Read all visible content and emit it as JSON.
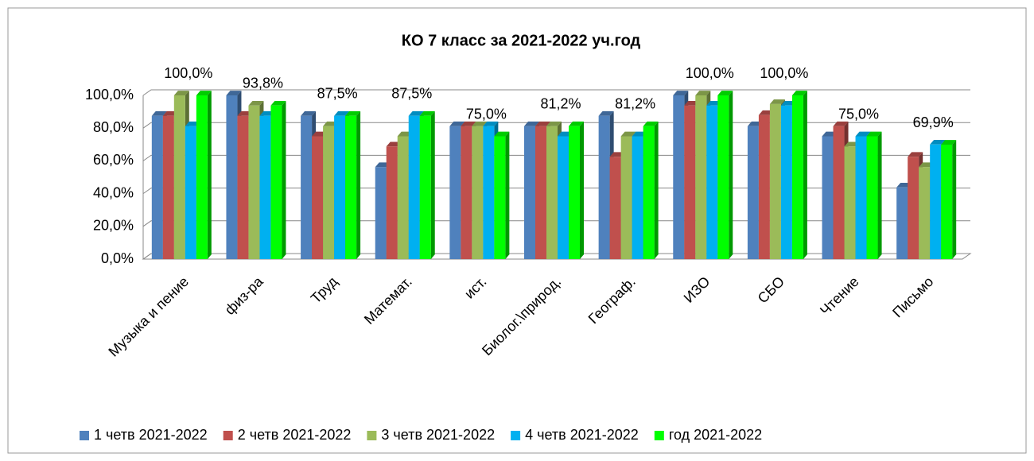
{
  "chart_data": {
    "type": "bar3d",
    "title": "КО 7 класс за 2021-2022 уч.год",
    "categories": [
      "Музыка и пение",
      "физ-ра",
      "Труд",
      "Математ.",
      "ист.",
      "Биолог.\\природ.",
      "Географ.",
      "ИЗО",
      "СБО",
      "Чтение",
      "Письмо"
    ],
    "series": [
      {
        "name": "1 четв 2021-2022",
        "color": "#4f81bd",
        "values": [
          87.5,
          100,
          87.5,
          56.2,
          81.2,
          81.2,
          87.5,
          100,
          81.2,
          75,
          43.8
        ]
      },
      {
        "name": "2 четв 2021-2022",
        "color": "#c0504d",
        "values": [
          87.5,
          87.5,
          75,
          68.8,
          81.2,
          81.2,
          62.5,
          93.8,
          88,
          81.2,
          62.5
        ]
      },
      {
        "name": "3 четв 2021-2022",
        "color": "#9bbb59",
        "values": [
          100,
          93.8,
          81.2,
          75,
          81.2,
          81.2,
          75,
          100,
          94.7,
          68.8,
          56.2
        ]
      },
      {
        "name": "4 четв 2021-2022",
        "color": "#00b0f0",
        "values": [
          81.2,
          87.5,
          87.5,
          87.5,
          81.2,
          75,
          75,
          93.8,
          93.8,
          75,
          70
        ]
      },
      {
        "name": "год 2021-2022",
        "color": "#00ff00",
        "values": [
          100,
          93.8,
          87.5,
          87.5,
          75,
          81.2,
          81.2,
          100,
          100,
          75,
          69.9
        ],
        "value_labels": [
          "100,0%",
          "93,8%",
          "87,5%",
          "87,5%",
          "75,0%",
          "81,2%",
          "81,2%",
          "100,0%",
          "100,0%",
          "75,0%",
          "69,9%"
        ]
      }
    ],
    "ylim": [
      0,
      100
    ],
    "yticks": [
      {
        "value": 0,
        "label": "0,0%"
      },
      {
        "value": 20,
        "label": "20,0%"
      },
      {
        "value": 40,
        "label": "40,0%"
      },
      {
        "value": 60,
        "label": "60,0%"
      },
      {
        "value": 80,
        "label": "80,0%"
      },
      {
        "value": 100,
        "label": "100,0%"
      }
    ],
    "grid": true,
    "legend": "bottom"
  }
}
